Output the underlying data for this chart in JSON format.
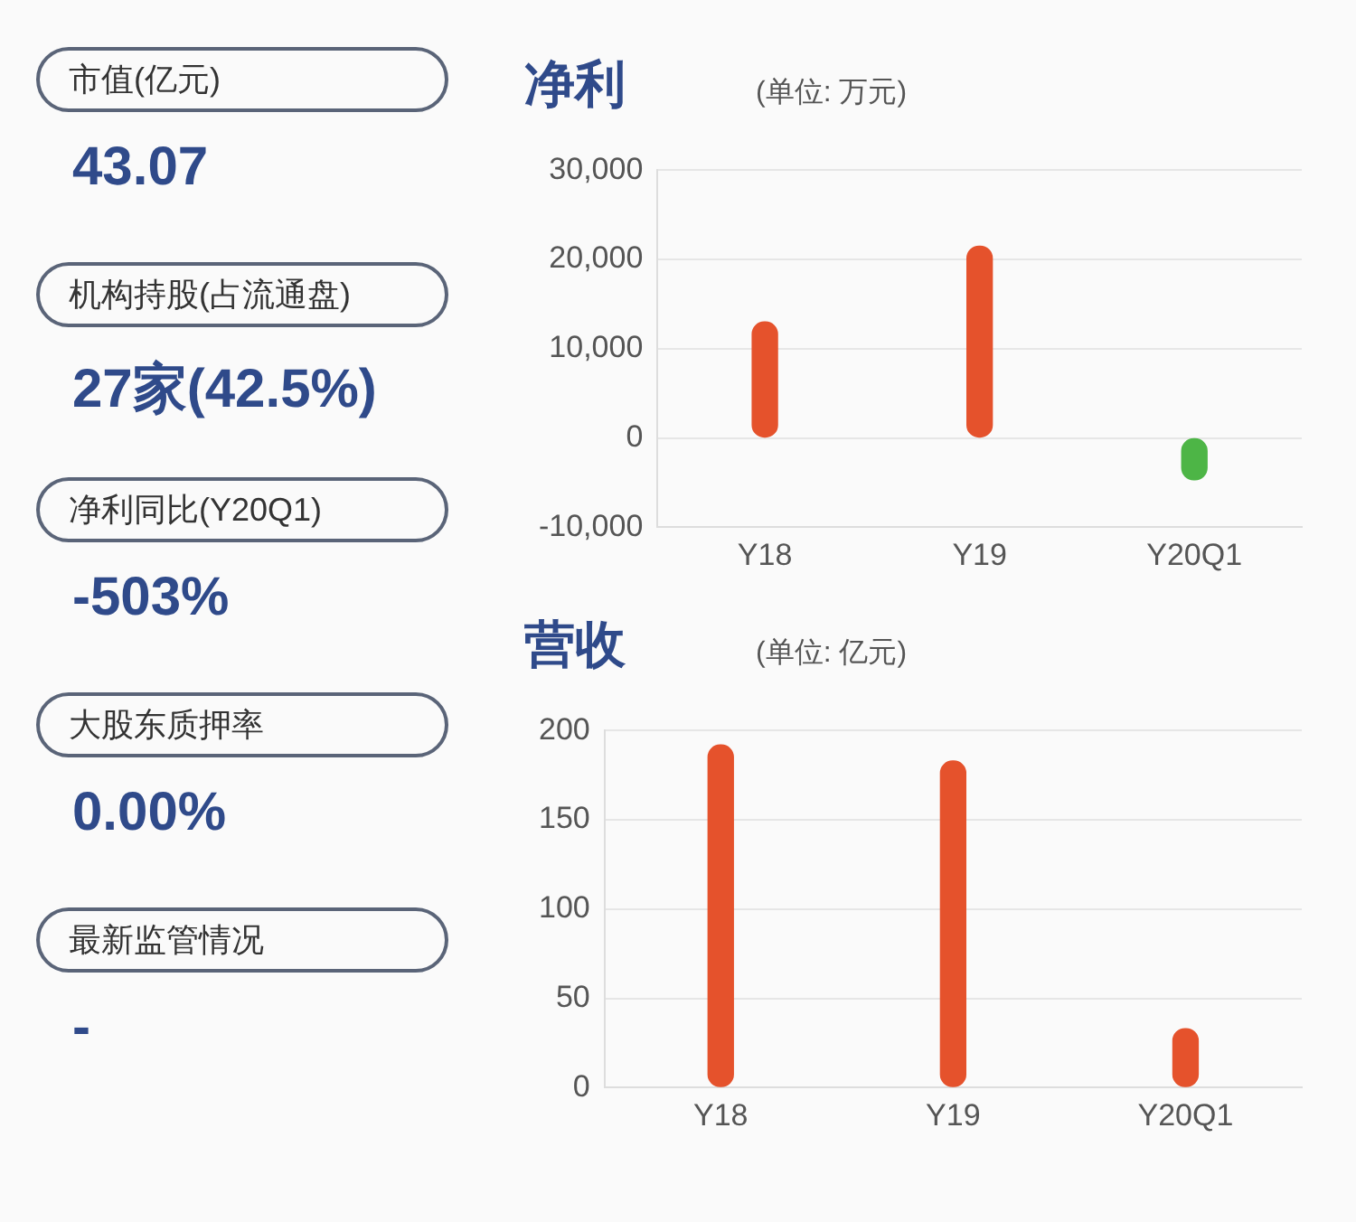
{
  "chart_data": [
    {
      "type": "other",
      "annotations": [
        "市值(亿元)",
        "43.07",
        "机构持股(占流通盘)",
        "27家(42.5%)",
        "净利同比(Y20Q1)",
        "-503%",
        "大股东质押率",
        "0.00%",
        "最新监管情况",
        "-"
      ]
    },
    {
      "type": "bar",
      "title": "净利",
      "subtitle": "(单位: 万元)",
      "categories": [
        "Y18",
        "Y19",
        "Y20Q1"
      ],
      "values": [
        13000,
        21500,
        -4700
      ],
      "colors": [
        "#e5522c",
        "#e5522c",
        "#4db546"
      ],
      "ylim": [
        -10000,
        30000
      ],
      "yticks": [
        {
          "value": -10000,
          "label": "-10,000"
        },
        {
          "value": 0,
          "label": "0"
        },
        {
          "value": 10000,
          "label": "10,000"
        },
        {
          "value": 20000,
          "label": "20,000"
        },
        {
          "value": 30000,
          "label": "30,000"
        }
      ],
      "grid": "y"
    },
    {
      "type": "bar",
      "title": "营收",
      "subtitle": "(单位: 亿元)",
      "categories": [
        "Y18",
        "Y19",
        "Y20Q1"
      ],
      "values": [
        192,
        183,
        33
      ],
      "colors": [
        "#e5522c",
        "#e5522c",
        "#e5522c"
      ],
      "ylim": [
        0,
        200
      ],
      "yticks": [
        0,
        50,
        100,
        150,
        200
      ],
      "grid": "y"
    }
  ]
}
